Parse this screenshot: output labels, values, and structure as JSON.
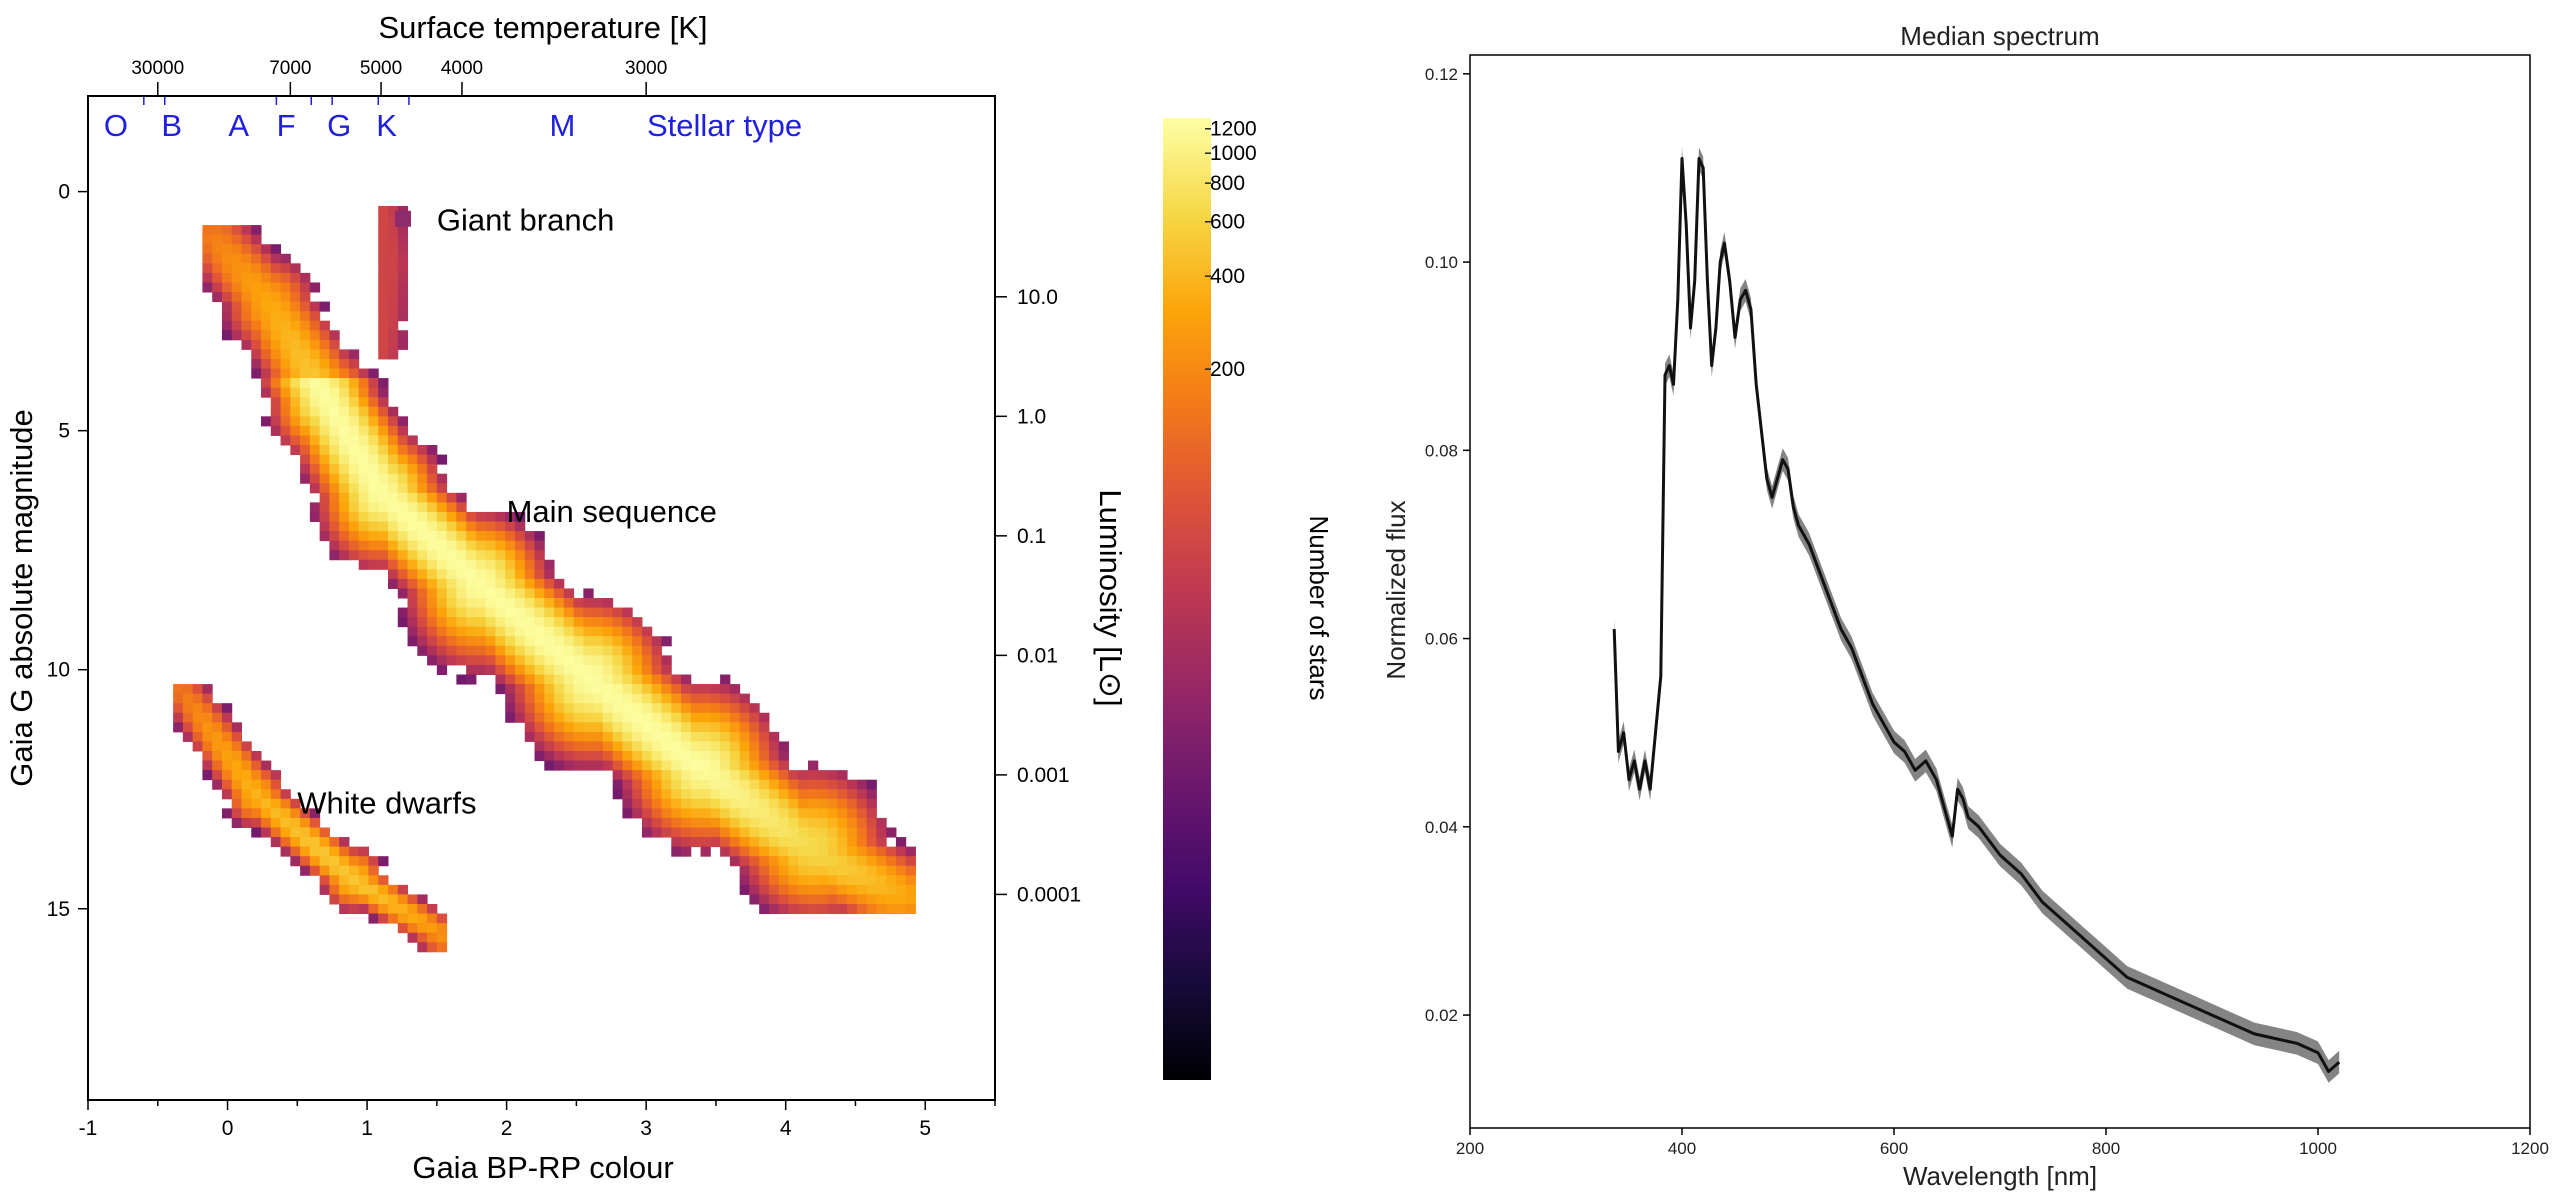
{
  "chart_data": [
    {
      "type": "heatmap",
      "title": "",
      "xlabel": "Gaia BP-RP colour",
      "ylabel": "Gaia G absolute magnitude",
      "xlim": [
        -1,
        5.5
      ],
      "ylim": [
        19,
        -2
      ],
      "y_inverted": true,
      "x_ticks": [
        "-1",
        "0",
        "1",
        "2",
        "3",
        "4",
        "5"
      ],
      "y_ticks": [
        "0",
        "5",
        "10",
        "15"
      ],
      "top_axis": {
        "label": "Surface temperature [K]",
        "ticks": [
          {
            "label": "30000",
            "x": -0.5
          },
          {
            "label": "7000",
            "x": 0.45
          },
          {
            "label": "5000",
            "x": 1.1
          },
          {
            "label": "4000",
            "x": 1.68
          },
          {
            "label": "3000",
            "x": 3.0
          }
        ]
      },
      "stellar_types": {
        "labels": [
          {
            "label": "O",
            "x": -0.8
          },
          {
            "label": "B",
            "x": -0.4
          },
          {
            "label": "A",
            "x": 0.08
          },
          {
            "label": "F",
            "x": 0.42
          },
          {
            "label": "G",
            "x": 0.8
          },
          {
            "label": "K",
            "x": 1.14
          },
          {
            "label": "M",
            "x": 2.4
          }
        ],
        "title": "Stellar type",
        "color": "#1f1fdd"
      },
      "right_axis": {
        "label": "Luminosity [L⊙]",
        "ticks": [
          {
            "label": "10.0",
            "mag": 2.2
          },
          {
            "label": "1.0",
            "mag": 4.7
          },
          {
            "label": "0.1",
            "mag": 7.2
          },
          {
            "label": "0.01",
            "mag": 9.7
          },
          {
            "label": "0.001",
            "mag": 12.2
          },
          {
            "label": "0.0001",
            "mag": 14.7
          }
        ]
      },
      "colorbar": {
        "label": "Number of stars",
        "scale": "log",
        "range": [
          1,
          1300
        ],
        "ticks": [
          "1200",
          "1000",
          "800",
          "600",
          "400",
          "200"
        ],
        "tick_values": [
          1200,
          1000,
          800,
          600,
          400,
          200
        ]
      },
      "annotations": [
        {
          "text": "Giant branch",
          "x": 1.5,
          "y": 0.6
        },
        {
          "text": "Main sequence",
          "x": 2.0,
          "y": 6.7
        },
        {
          "text": "White dwarfs",
          "x": 0.5,
          "y": 12.8
        }
      ],
      "populations": [
        {
          "name": "main sequence",
          "ridge": [
            [
              -0.1,
              0.9
            ],
            [
              0.3,
              2.3
            ],
            [
              0.7,
              4.3
            ],
            [
              1.1,
              6.3
            ],
            [
              1.8,
              8.2
            ],
            [
              2.6,
              10.2
            ],
            [
              3.4,
              12.1
            ],
            [
              4.2,
              13.9
            ],
            [
              4.8,
              14.8
            ]
          ],
          "peak": 1250
        },
        {
          "name": "giant branch",
          "ridge": [
            [
              1.1,
              0.3
            ],
            [
              1.15,
              1.5
            ],
            [
              1.1,
              3.3
            ]
          ],
          "peak": 60
        },
        {
          "name": "white dwarfs",
          "ridge": [
            [
              -0.35,
              10.3
            ],
            [
              0.2,
              12.6
            ],
            [
              0.9,
              14.4
            ],
            [
              1.55,
              15.6
            ]
          ],
          "peak": 500
        }
      ]
    },
    {
      "type": "line",
      "title": "Median spectrum",
      "xlabel": "Wavelength [nm]",
      "ylabel": "Normalized flux",
      "xlim": [
        200,
        1200
      ],
      "ylim": [
        0.008,
        0.122
      ],
      "x_ticks": [
        200,
        400,
        600,
        800,
        1000,
        1200
      ],
      "y_ticks": [
        0.02,
        0.04,
        0.06,
        0.08,
        0.1,
        0.12
      ],
      "series": [
        {
          "color": "#111111",
          "band_color": "#777777",
          "band_halfwidth": 0.0012,
          "x": [
            336,
            340,
            345,
            350,
            355,
            360,
            365,
            370,
            375,
            380,
            384,
            388,
            392,
            396,
            400,
            404,
            408,
            412,
            416,
            420,
            424,
            428,
            432,
            436,
            440,
            445,
            450,
            455,
            460,
            465,
            470,
            475,
            480,
            485,
            490,
            495,
            500,
            505,
            510,
            520,
            530,
            540,
            550,
            560,
            570,
            580,
            590,
            600,
            610,
            620,
            630,
            640,
            645,
            650,
            655,
            660,
            665,
            670,
            680,
            700,
            720,
            740,
            760,
            780,
            800,
            820,
            840,
            860,
            880,
            900,
            920,
            940,
            960,
            980,
            1000,
            1010,
            1020
          ],
          "y": [
            0.061,
            0.048,
            0.05,
            0.045,
            0.047,
            0.044,
            0.047,
            0.044,
            0.05,
            0.056,
            0.088,
            0.089,
            0.087,
            0.096,
            0.111,
            0.104,
            0.093,
            0.098,
            0.111,
            0.11,
            0.098,
            0.089,
            0.093,
            0.1,
            0.102,
            0.098,
            0.092,
            0.096,
            0.097,
            0.095,
            0.087,
            0.082,
            0.077,
            0.075,
            0.077,
            0.079,
            0.078,
            0.074,
            0.072,
            0.07,
            0.067,
            0.064,
            0.061,
            0.059,
            0.056,
            0.053,
            0.051,
            0.049,
            0.048,
            0.046,
            0.047,
            0.045,
            0.043,
            0.041,
            0.039,
            0.044,
            0.043,
            0.041,
            0.04,
            0.037,
            0.035,
            0.032,
            0.03,
            0.028,
            0.026,
            0.024,
            0.023,
            0.022,
            0.021,
            0.02,
            0.019,
            0.018,
            0.0175,
            0.017,
            0.016,
            0.014,
            0.015
          ]
        }
      ]
    }
  ]
}
